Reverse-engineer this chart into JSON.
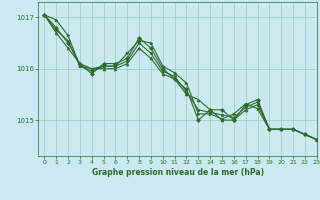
{
  "bg_color": "#cce8f0",
  "line_color": "#2d6a2d",
  "grid_color": "#99ccbb",
  "xlabel": "Graphe pression niveau de la mer (hPa)",
  "ylim": [
    1014.3,
    1017.3
  ],
  "xlim": [
    -0.5,
    23
  ],
  "yticks": [
    1015,
    1016,
    1017
  ],
  "xticks": [
    0,
    1,
    2,
    3,
    4,
    5,
    6,
    7,
    8,
    9,
    10,
    11,
    12,
    13,
    14,
    15,
    16,
    17,
    18,
    19,
    20,
    21,
    22,
    23
  ],
  "series": [
    [
      1017.05,
      1016.95,
      1016.65,
      1016.05,
      1016.0,
      1016.05,
      1016.05,
      1016.3,
      1016.55,
      1016.5,
      1016.05,
      1015.92,
      1015.72,
      1015.12,
      1015.12,
      1015.02,
      1015.12,
      1015.32,
      1015.22,
      1014.82,
      1014.82,
      1014.82,
      1014.72,
      1014.62
    ],
    [
      1017.05,
      1016.8,
      1016.5,
      1016.1,
      1015.9,
      1016.1,
      1016.1,
      1016.2,
      1016.6,
      1016.4,
      1016.0,
      1015.8,
      1015.6,
      1015.0,
      1015.2,
      1015.2,
      1015.0,
      1015.3,
      1015.4,
      1014.82,
      1014.82,
      1014.82,
      1014.72,
      1014.62
    ],
    [
      1017.05,
      1016.7,
      1016.4,
      1016.1,
      1016.0,
      1016.0,
      1016.0,
      1016.1,
      1016.4,
      1016.2,
      1015.9,
      1015.8,
      1015.5,
      1015.4,
      1015.2,
      1015.0,
      1015.0,
      1015.2,
      1015.3,
      1014.82,
      1014.82,
      1014.82,
      1014.72,
      1014.62
    ],
    [
      1017.05,
      1016.75,
      1016.55,
      1016.05,
      1015.95,
      1016.05,
      1016.05,
      1016.15,
      1016.5,
      1016.3,
      1015.95,
      1015.85,
      1015.55,
      1015.2,
      1015.15,
      1015.1,
      1015.05,
      1015.25,
      1015.35,
      1014.82,
      1014.82,
      1014.82,
      1014.72,
      1014.62
    ]
  ],
  "title_fontsize": 5.5,
  "tick_labelsize": 5,
  "xtick_labelsize": 4.5,
  "linewidth": 0.8,
  "markersize": 2.0
}
